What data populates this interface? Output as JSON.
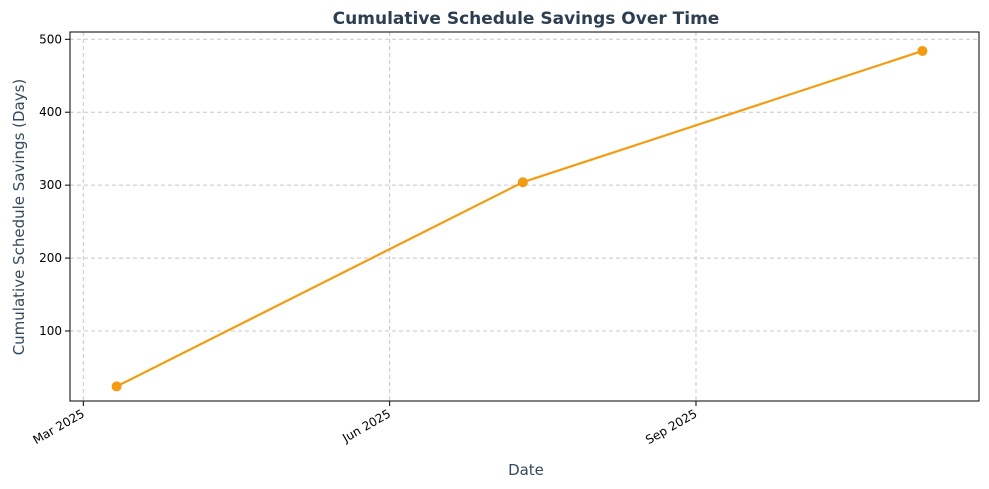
{
  "chart_data": {
    "type": "line",
    "title": "Cumulative Schedule Savings Over Time",
    "xlabel": "Date",
    "ylabel": "Cumulative Schedule Savings (Days)",
    "x_axis": {
      "scale": "date",
      "range": [
        "2025-02-25",
        "2025-11-25"
      ],
      "ticks": [
        {
          "date": "2025-03-01",
          "label": "Mar 2025"
        },
        {
          "date": "2025-06-01",
          "label": "Jun 2025"
        },
        {
          "date": "2025-09-01",
          "label": "Sep 2025"
        }
      ]
    },
    "y_axis": {
      "range": [
        4,
        510
      ],
      "ticks": [
        100,
        200,
        300,
        400,
        500
      ]
    },
    "grid": true,
    "series": [
      {
        "color": "#f39c12",
        "x": [
          "2025-03-11",
          "2025-07-11",
          "2025-11-08"
        ],
        "y": [
          24,
          304,
          484
        ]
      }
    ]
  }
}
